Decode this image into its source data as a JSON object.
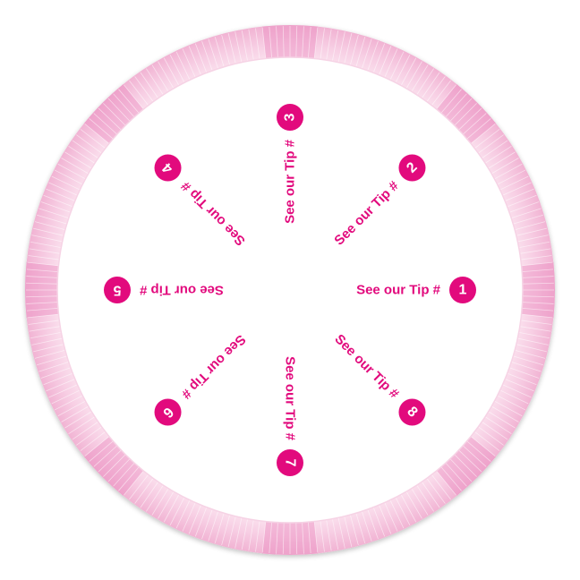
{
  "wheel": {
    "accent_color": "#e20a7d",
    "ring_color": "#f3b6d6",
    "ring_highlight_color": "#ec8ec0",
    "tips": [
      {
        "label": "See our Tip #",
        "number": "1"
      },
      {
        "label": "See our Tip #",
        "number": "2"
      },
      {
        "label": "See our Tip #",
        "number": "3"
      },
      {
        "label": "See our Tip #",
        "number": "4"
      },
      {
        "label": "See our Tip #",
        "number": "5"
      },
      {
        "label": "See our Tip #",
        "number": "6"
      },
      {
        "label": "See our Tip #",
        "number": "7"
      },
      {
        "label": "See our Tip #",
        "number": "8"
      }
    ]
  }
}
